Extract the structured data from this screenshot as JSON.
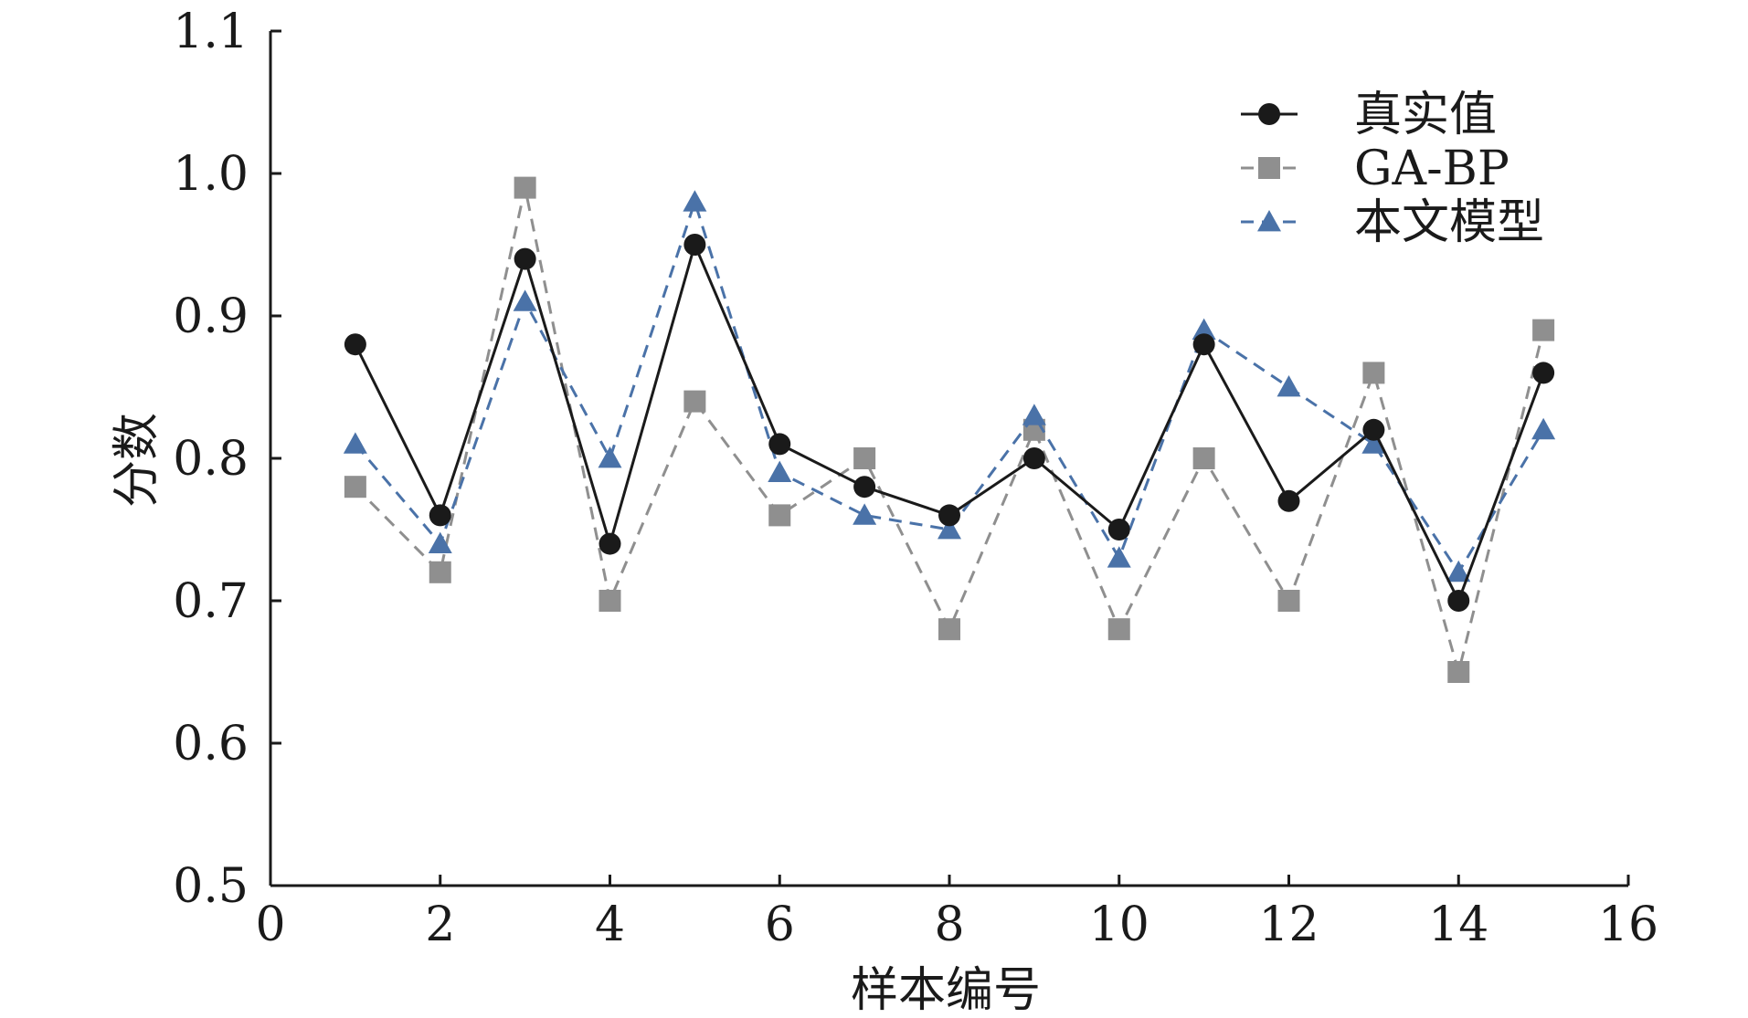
{
  "chart_data": {
    "type": "line",
    "title": "",
    "xlabel": "样本编号",
    "ylabel": "分数",
    "xlim": [
      0,
      16
    ],
    "ylim": [
      0.5,
      1.1
    ],
    "x_ticks": [
      0,
      2,
      4,
      6,
      8,
      10,
      12,
      14,
      16
    ],
    "y_ticks": [
      0.5,
      0.6,
      0.7,
      0.8,
      0.9,
      1.0,
      1.1
    ],
    "x_tick_labels": [
      "0",
      "2",
      "4",
      "6",
      "8",
      "10",
      "12",
      "14",
      "16"
    ],
    "y_tick_labels": [
      "0.5",
      "0.6",
      "0.7",
      "0.8",
      "0.9",
      "1.0",
      "1.1"
    ],
    "grid": false,
    "legend_position": "top-right",
    "x": [
      1,
      2,
      3,
      4,
      5,
      6,
      7,
      8,
      9,
      10,
      11,
      12,
      13,
      14,
      15
    ],
    "series": [
      {
        "name": "真实值",
        "values": [
          0.88,
          0.76,
          0.94,
          0.74,
          0.95,
          0.81,
          0.78,
          0.76,
          0.8,
          0.75,
          0.88,
          0.77,
          0.82,
          0.7,
          0.86
        ],
        "color": "#1a1a1a",
        "line_style": "solid",
        "marker": "circle"
      },
      {
        "name": "GA-BP",
        "values": [
          0.78,
          0.72,
          0.99,
          0.7,
          0.84,
          0.76,
          0.8,
          0.68,
          0.82,
          0.68,
          0.8,
          0.7,
          0.86,
          0.65,
          0.89
        ],
        "color": "#8f8f8f",
        "line_style": "dashed",
        "marker": "square"
      },
      {
        "name": "本文模型",
        "values": [
          0.81,
          0.74,
          0.91,
          0.8,
          0.98,
          0.79,
          0.76,
          0.75,
          0.83,
          0.73,
          0.89,
          0.85,
          0.81,
          0.72,
          0.82
        ],
        "color": "#4a72a8",
        "line_style": "dashed",
        "marker": "triangle"
      }
    ]
  }
}
